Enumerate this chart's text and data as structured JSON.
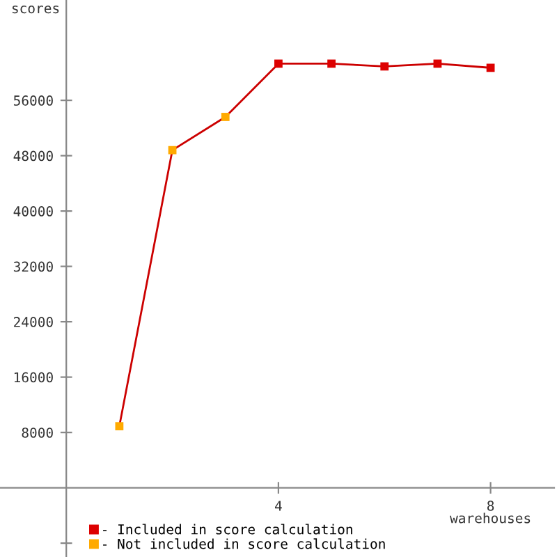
{
  "chart_data": {
    "type": "line",
    "xlabel": "warehouses",
    "ylabel": "scores",
    "x": [
      1,
      2,
      3,
      4,
      5,
      6,
      7,
      8
    ],
    "series": [
      {
        "color": "#cc0000",
        "values": [
          8900,
          48800,
          53600,
          61300,
          61300,
          60900,
          61300,
          60700
        ],
        "marker": "none"
      },
      {
        "type": "scatter",
        "name": "- Included in score calculation",
        "color": "#dd0000",
        "values": [
          null,
          null,
          null,
          61300,
          61300,
          60900,
          61300,
          60700
        ],
        "marker": "square"
      },
      {
        "type": "scatter",
        "name": "- Not included in score calculation",
        "color": "#ffaa00",
        "values": [
          8900,
          48800,
          53600,
          null,
          null,
          null,
          null,
          null
        ],
        "marker": "square"
      }
    ],
    "xlim": [
      -1.25,
      9.2
    ],
    "ylim": [
      -10000,
      70500
    ],
    "xticks": [
      4,
      8
    ],
    "yticks": [
      {
        "value": -8000,
        "label": null
      },
      8000,
      16000,
      24000,
      32000,
      40000,
      48000,
      56000
    ],
    "grid": false,
    "legend": "bottom left"
  }
}
